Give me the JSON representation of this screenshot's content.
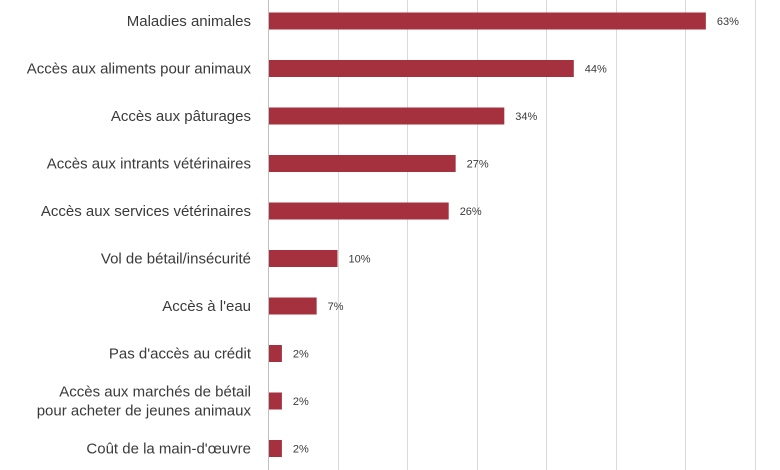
{
  "colors": {
    "bar": "#a5313f",
    "grid": "#d9d9d9"
  },
  "chart_data": {
    "type": "bar",
    "orientation": "horizontal",
    "grid": true,
    "xlim": [
      0,
      70
    ],
    "categories": [
      [
        "Maladies animales"
      ],
      [
        "Accès aux aliments pour animaux"
      ],
      [
        "Accès aux pâturages"
      ],
      [
        "Accès aux intrants vétérinaires"
      ],
      [
        "Accès aux services vétérinaires"
      ],
      [
        "Vol de bétail/insécurité"
      ],
      [
        "Accès à l'eau"
      ],
      [
        "Pas d'accès au crédit"
      ],
      [
        "Accès aux marchés de bétail",
        "pour acheter de jeunes animaux"
      ],
      [
        "Coût de la main-d'œuvre"
      ]
    ],
    "values": [
      63,
      44,
      34,
      27,
      26,
      10,
      7,
      2,
      2,
      2
    ],
    "value_labels": [
      "63%",
      "44%",
      "34%",
      "27%",
      "26%",
      "10%",
      "7%",
      "2%",
      "2%",
      "2%"
    ]
  }
}
